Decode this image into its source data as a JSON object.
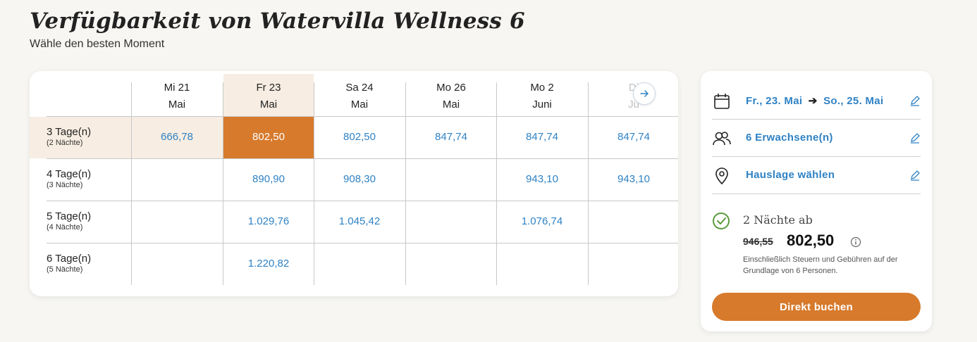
{
  "header": {
    "title": "Verfügbarkeit von Watervilla Wellness 6",
    "subtitle": "Wähle den besten Moment"
  },
  "grid": {
    "columns": [
      {
        "day": "Mi 21",
        "month": "Mai"
      },
      {
        "day": "Fr 23",
        "month": "Mai",
        "selected": true
      },
      {
        "day": "Sa 24",
        "month": "Mai"
      },
      {
        "day": "Mo 26",
        "month": "Mai"
      },
      {
        "day": "Mo 2",
        "month": "Juni"
      },
      {
        "day": "Di",
        "month": "Ju",
        "partial": true
      }
    ],
    "rows": [
      {
        "label": "3 Tage(n)",
        "sub": "(2 Nächte)",
        "prices": [
          "666,78",
          "802,50",
          "802,50",
          "847,74",
          "847,74",
          "847,74"
        ]
      },
      {
        "label": "4 Tage(n)",
        "sub": "(3 Nächte)",
        "prices": [
          "",
          "890,90",
          "908,30",
          "",
          "943,10",
          "943,10"
        ]
      },
      {
        "label": "5 Tage(n)",
        "sub": "(4 Nächte)",
        "prices": [
          "",
          "1.029,76",
          "1.045,42",
          "",
          "1.076,74",
          ""
        ]
      },
      {
        "label": "6 Tage(n)",
        "sub": "(5 Nächte)",
        "prices": [
          "",
          "1.220,82",
          "",
          "",
          "",
          ""
        ]
      }
    ],
    "selected_cell": {
      "row": 0,
      "col": 1
    },
    "next_icon": "arrow-right-icon"
  },
  "booking": {
    "date_from": "Fr., 23. Mai",
    "date_to": "So., 25. Mai",
    "guests": "6 Erwachsene(n)",
    "location": "Hauslage wählen",
    "nights_label": "2 Nächte ab",
    "old_price": "946,55",
    "new_price": "802,50",
    "tax_note": "Einschließlich Steuern und Gebühren auf der Grundlage von 6 Personen.",
    "book_label": "Direkt buchen"
  },
  "colors": {
    "accent": "#d77a2c",
    "link": "#2f82c4",
    "highlight": "#f7ede2",
    "success": "#5a9a3c"
  }
}
